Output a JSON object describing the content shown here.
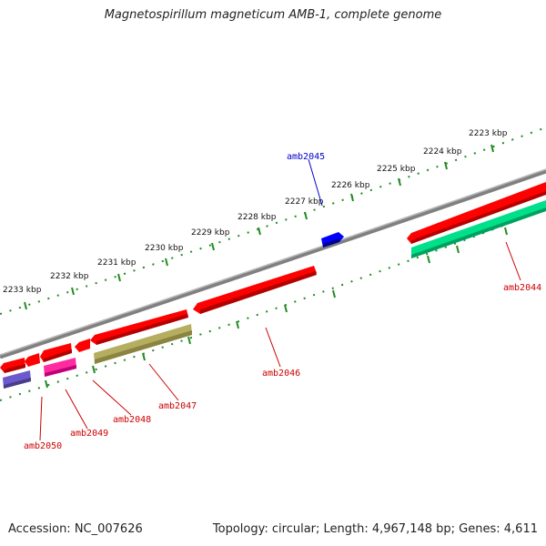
{
  "title": "Magnetospirillum magneticum AMB-1, complete genome",
  "footer": {
    "accession": "Accession: NC_007626",
    "topology": "Topology: circular; Length: 4,967,148 bp; Genes: 4,611"
  },
  "ticks": [
    "2223 kbp",
    "2224 kbp",
    "2225 kbp",
    "2226 kbp",
    "2227 kbp",
    "2228 kbp",
    "2229 kbp",
    "2230 kbp",
    "2231 kbp",
    "2232 kbp",
    "2233 kbp"
  ],
  "genes": [
    {
      "id": "amb2044",
      "color": "#cc0000"
    },
    {
      "id": "amb2045",
      "color": "#0000cc"
    },
    {
      "id": "amb2046",
      "color": "#cc0000"
    },
    {
      "id": "amb2047",
      "color": "#cc0000"
    },
    {
      "id": "amb2048",
      "color": "#cc0000"
    },
    {
      "id": "amb2049",
      "color": "#cc0000"
    },
    {
      "id": "amb2050",
      "color": "#cc0000"
    }
  ],
  "colors": {
    "backbone": "#808080",
    "tick": "#228b22",
    "red_gene": "#ff0000",
    "blue_gene": "#0000ff",
    "green_gene": "#00e08a",
    "olive_gene": "#b5ad60",
    "pink_gene": "#ff2ca0",
    "purple_gene": "#6a5acd"
  }
}
